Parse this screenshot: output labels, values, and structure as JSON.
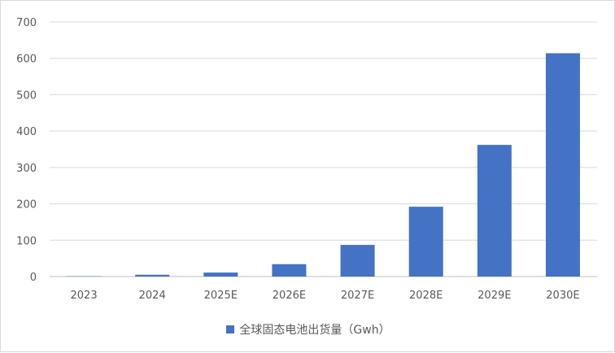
{
  "chart_data": {
    "type": "bar",
    "categories": [
      "2023",
      "2024",
      "2025E",
      "2026E",
      "2027E",
      "2028E",
      "2029E",
      "2030E"
    ],
    "series": [
      {
        "name": "全球固态电池出货量（Gwh）",
        "values": [
          1,
          5,
          11,
          34,
          87,
          192,
          362,
          614
        ],
        "color": "#4472c4"
      }
    ],
    "ylim": [
      0,
      700
    ],
    "yticks": [
      "0",
      "100",
      "200",
      "300",
      "400",
      "500",
      "600",
      "700"
    ],
    "grid": true,
    "legend_position": "bottom"
  }
}
